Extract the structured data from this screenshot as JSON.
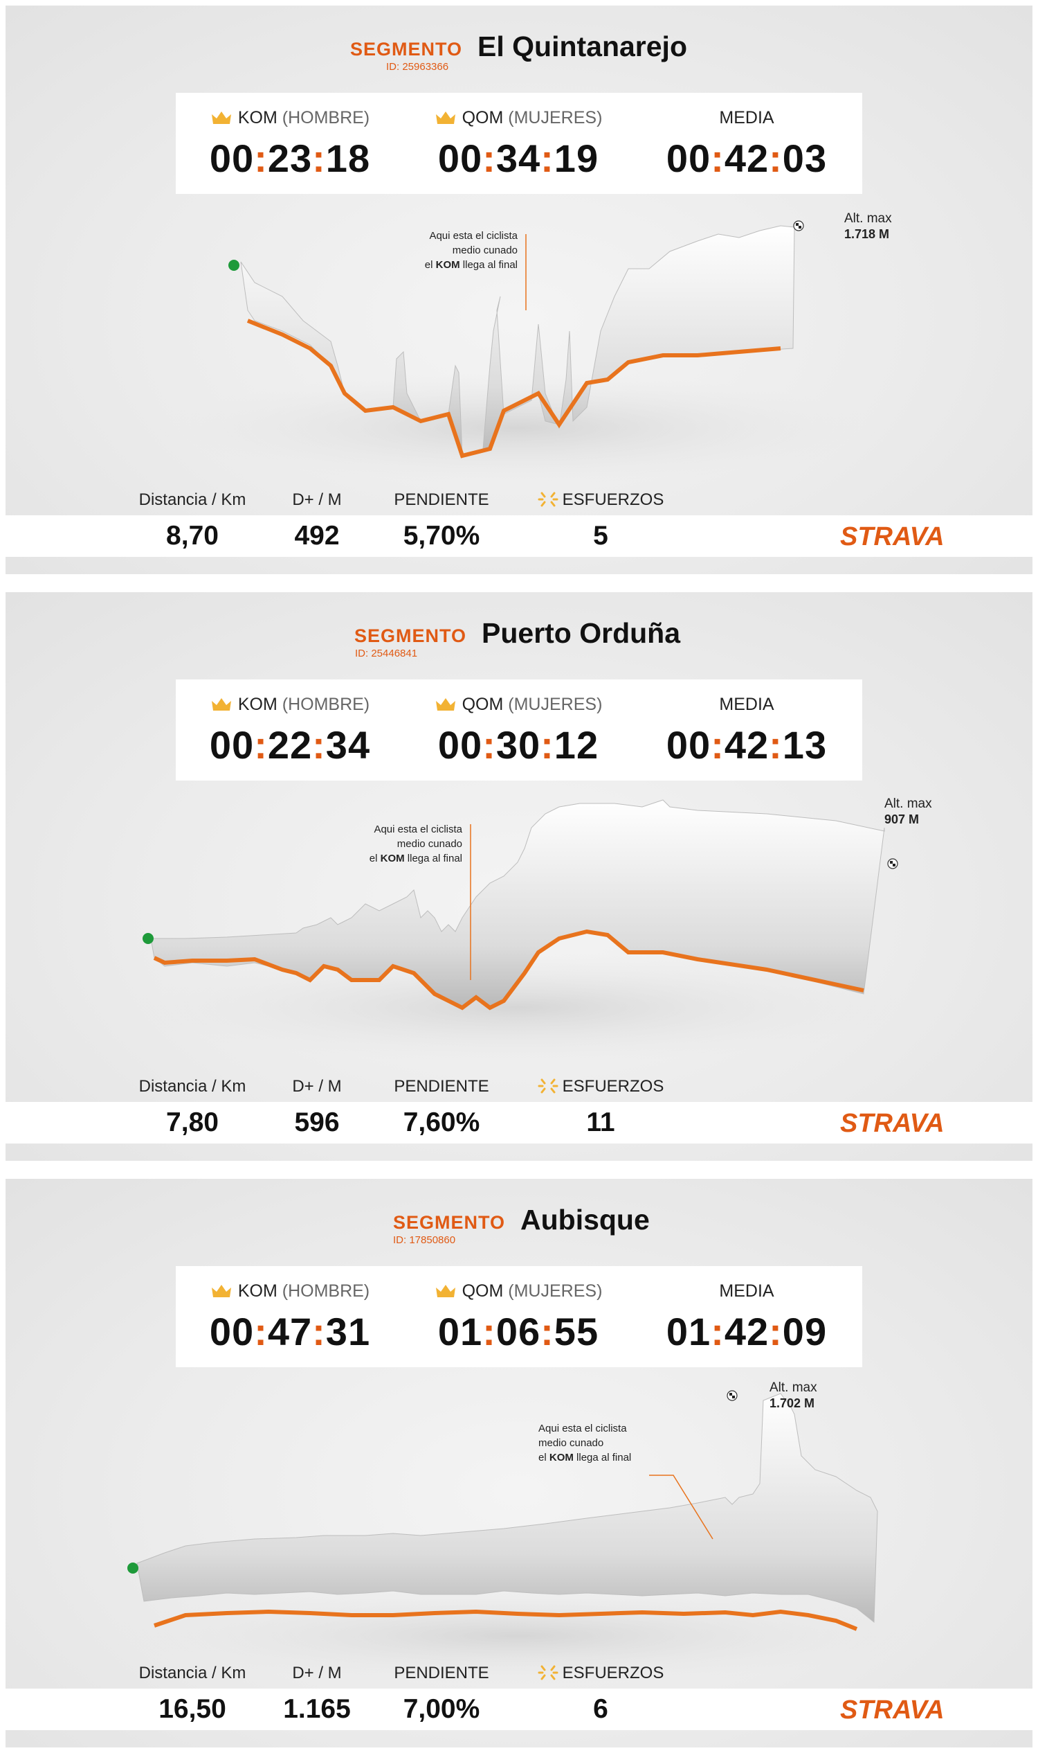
{
  "segments": [
    {
      "label": "SEGMENTO",
      "id_text": "ID: 25963366",
      "name": "El Quintanarejo",
      "kom_label": "KOM",
      "kom_sub": "(HOMBRE)",
      "kom_time": [
        "00",
        "23",
        "18"
      ],
      "qom_label": "QOM",
      "qom_sub": "(MUJERES)",
      "qom_time": [
        "00",
        "34",
        "19"
      ],
      "media_label": "MEDIA",
      "media_time": [
        "00",
        "42",
        "03"
      ],
      "annotation": [
        "Aqui esta el ciclista",
        "medio cunado",
        "el",
        "KOM",
        "llega al final"
      ],
      "alt_label": "Alt. max",
      "alt_value": "1.718 M",
      "stat_labels": [
        "Distancia / Km",
        "D+ / M",
        "PENDIENTE",
        "ESFUERZOS"
      ],
      "stat_values": [
        "8,70",
        "492",
        "5,70%",
        "5"
      ],
      "brand": "STRAVA"
    },
    {
      "label": "SEGMENTO",
      "id_text": "ID: 25446841",
      "name": "Puerto Orduña",
      "kom_label": "KOM",
      "kom_sub": "(HOMBRE)",
      "kom_time": [
        "00",
        "22",
        "34"
      ],
      "qom_label": "QOM",
      "qom_sub": "(MUJERES)",
      "qom_time": [
        "00",
        "30",
        "12"
      ],
      "media_label": "MEDIA",
      "media_time": [
        "00",
        "42",
        "13"
      ],
      "annotation": [
        "Aqui esta el ciclista",
        "medio cunado",
        "el",
        "KOM",
        "llega al final"
      ],
      "alt_label": "Alt. max",
      "alt_value": "907 M",
      "stat_labels": [
        "Distancia / Km",
        "D+ / M",
        "PENDIENTE",
        "ESFUERZOS"
      ],
      "stat_values": [
        "7,80",
        "596",
        "7,60%",
        "11"
      ],
      "brand": "STRAVA"
    },
    {
      "label": "SEGMENTO",
      "id_text": "ID: 17850860",
      "name": "Aubisque",
      "kom_label": "KOM",
      "kom_sub": "(HOMBRE)",
      "kom_time": [
        "00",
        "47",
        "31"
      ],
      "qom_label": "QOM",
      "qom_sub": "(MUJERES)",
      "qom_time": [
        "01",
        "06",
        "55"
      ],
      "media_label": "MEDIA",
      "media_time": [
        "01",
        "42",
        "09"
      ],
      "annotation": [
        "Aqui esta el ciclista",
        "medio cunado",
        "el",
        "KOM",
        "llega al final"
      ],
      "alt_label": "Alt. max",
      "alt_value": "1.702 M",
      "stat_labels": [
        "Distancia / Km",
        "D+ / M",
        "PENDIENTE",
        "ESFUERZOS"
      ],
      "stat_values": [
        "16,50",
        "1.165",
        "7,00%",
        "6"
      ],
      "brand": "STRAVA"
    }
  ],
  "colors": {
    "accent": "#e05a14",
    "crown": "#f2b233",
    "start_dot": "#1e9a3a"
  },
  "icons": [
    "crown-icon",
    "sparkle-icon",
    "start-marker",
    "finish-flag-icon",
    "strava-logo"
  ]
}
